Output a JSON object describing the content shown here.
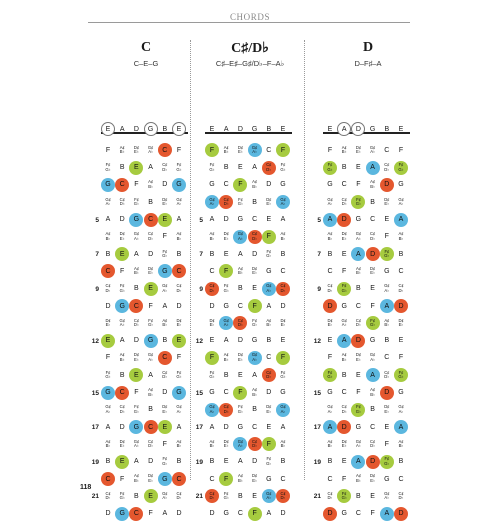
{
  "header": {
    "title": "CHORDS"
  },
  "page_number": "118",
  "colors": {
    "root": "#e4572e",
    "third": "#a6cb3f",
    "fifth": "#5bb7df",
    "open": "#ffffff"
  },
  "strings": [
    "E",
    "A",
    "D",
    "G",
    "B",
    "E"
  ],
  "fret_numbers": {
    "0": "",
    "5": "5",
    "7": "7",
    "9": "9",
    "12": "12",
    "15": "15",
    "17": "17",
    "19": "19",
    "21": "21"
  },
  "chords": [
    {
      "name": "C",
      "notes": "C–E–G",
      "root": "C",
      "third": "E",
      "fifth": "G"
    },
    {
      "name": "C♯/D♭",
      "notes": "C♯–E♯–G♯/D♭–F–A♭",
      "root": "C#",
      "third": "F",
      "fifth": "G#"
    },
    {
      "name": "D",
      "notes": "D–F♯–A",
      "root": "D",
      "third": "F#",
      "fifth": "A"
    }
  ]
}
